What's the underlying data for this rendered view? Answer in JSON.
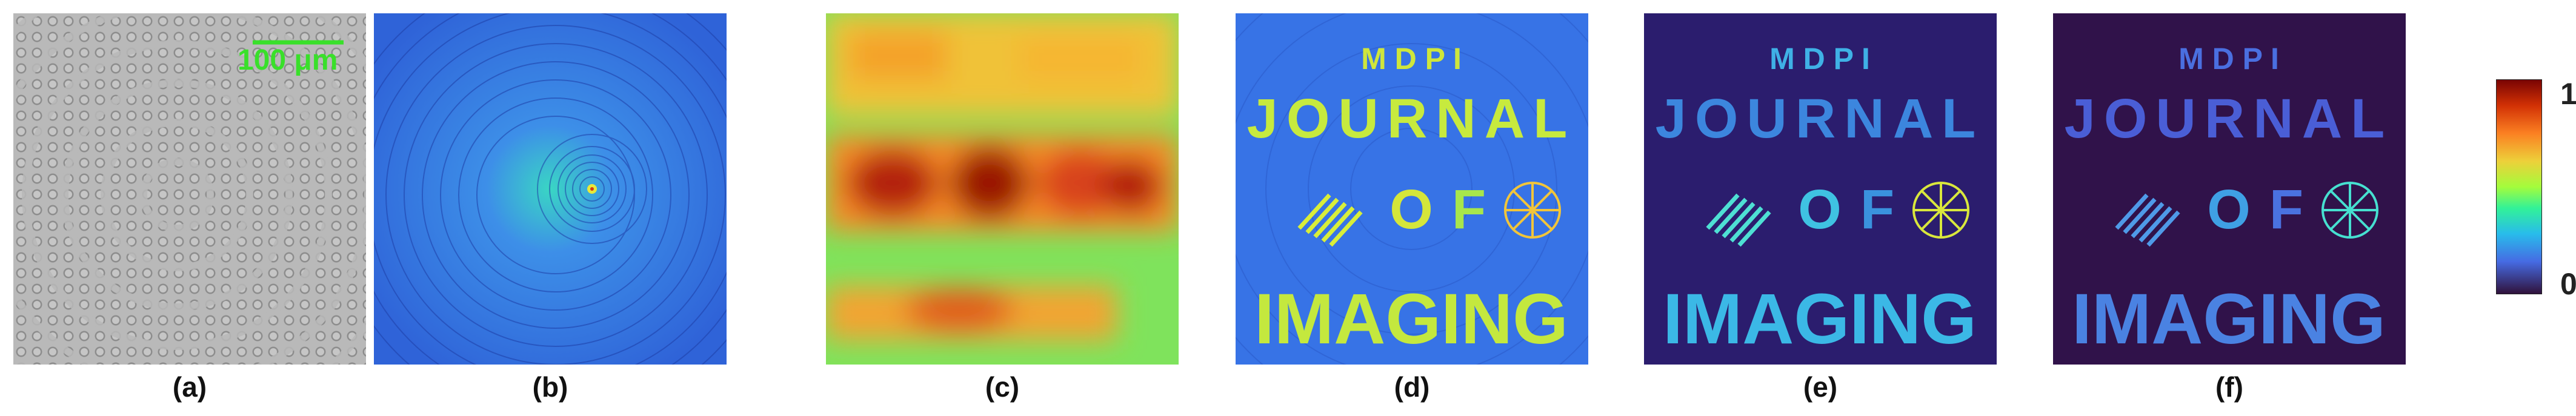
{
  "scale_bar": {
    "label": "100 μm",
    "color": "#39e02a"
  },
  "panels": [
    {
      "caption": "(a)"
    },
    {
      "caption": "(b)"
    },
    {
      "caption": "(c)"
    },
    {
      "caption": "(d)"
    },
    {
      "caption": "(e)"
    },
    {
      "caption": "(f)"
    }
  ],
  "overlay_text": {
    "line1": "M  D  P  I",
    "line2": "JOURNAL",
    "line3_a": "O",
    "line3_b": "F",
    "line4": "IMAGING"
  },
  "colorbar": {
    "max_label": "1",
    "min_label": "0",
    "colormap": "turbo"
  }
}
